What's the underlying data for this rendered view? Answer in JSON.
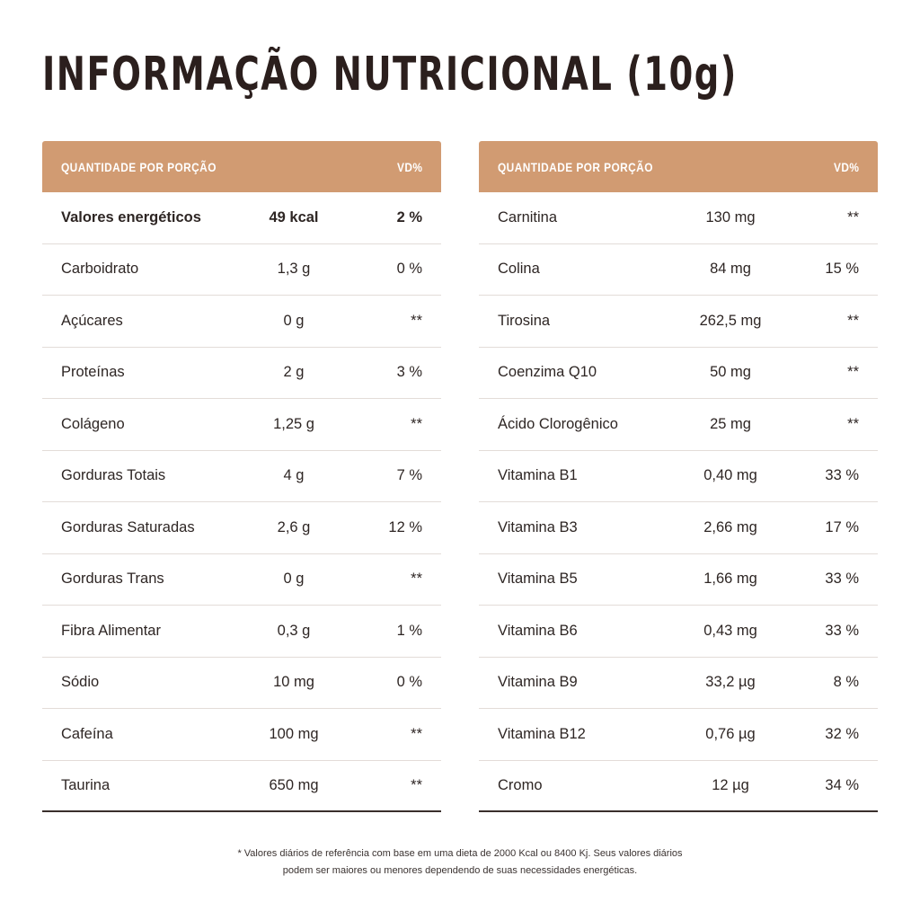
{
  "title": "INFORMAÇÃO NUTRICIONAL (10g)",
  "left_table": {
    "header": {
      "quantity": "QUANTIDADE POR PORÇÃO",
      "vd": "VD%"
    },
    "rows": [
      {
        "name": "Valores energéticos",
        "amount": "49 kcal",
        "vd": "2 %"
      },
      {
        "name": "Carboidrato",
        "amount": "1,3 g",
        "vd": "0 %"
      },
      {
        "name": "Açúcares",
        "amount": "0 g",
        "vd": "**"
      },
      {
        "name": "Proteínas",
        "amount": "2 g",
        "vd": "3 %"
      },
      {
        "name": "Colágeno",
        "amount": "1,25 g",
        "vd": "**"
      },
      {
        "name": "Gorduras Totais",
        "amount": "4 g",
        "vd": "7 %"
      },
      {
        "name": "Gorduras Saturadas",
        "amount": "2,6 g",
        "vd": "12 %"
      },
      {
        "name": "Gorduras Trans",
        "amount": "0 g",
        "vd": "**"
      },
      {
        "name": "Fibra Alimentar",
        "amount": "0,3 g",
        "vd": "1 %"
      },
      {
        "name": "Sódio",
        "amount": "10 mg",
        "vd": "0 %"
      },
      {
        "name": "Cafeína",
        "amount": "100 mg",
        "vd": "**"
      },
      {
        "name": "Taurina",
        "amount": "650 mg",
        "vd": "**"
      }
    ]
  },
  "right_table": {
    "header": {
      "quantity": "QUANTIDADE POR PORÇÃO",
      "vd": "VD%"
    },
    "rows": [
      {
        "name": "Carnitina",
        "amount": "130 mg",
        "vd": "**"
      },
      {
        "name": "Colina",
        "amount": "84 mg",
        "vd": "15 %"
      },
      {
        "name": "Tirosina",
        "amount": "262,5 mg",
        "vd": "**"
      },
      {
        "name": "Coenzima Q10",
        "amount": "50 mg",
        "vd": "**"
      },
      {
        "name": "Ácido Clorogênico",
        "amount": "25 mg",
        "vd": "**"
      },
      {
        "name": "Vitamina B1",
        "amount": "0,40 mg",
        "vd": "33 %"
      },
      {
        "name": "Vitamina B3",
        "amount": "2,66 mg",
        "vd": "17 %"
      },
      {
        "name": "Vitamina B5",
        "amount": "1,66 mg",
        "vd": "33 %"
      },
      {
        "name": "Vitamina B6",
        "amount": "0,43 mg",
        "vd": "33 %"
      },
      {
        "name": "Vitamina B9",
        "amount": "33,2 µg",
        "vd": "8 %"
      },
      {
        "name": "Vitamina B12",
        "amount": "0,76 µg",
        "vd": "32 %"
      },
      {
        "name": "Cromo",
        "amount": "12 µg",
        "vd": "34 %"
      }
    ]
  },
  "footnote": {
    "line1": "* Valores diários de referência com base em uma dieta de 2000 Kcal ou 8400 Kj. Seus valores diários",
    "line2": "podem ser maiores ou menores dependendo de suas necessidades energéticas."
  },
  "colors": {
    "header_bg": "#d19b72",
    "title": "#2b1f1d",
    "rule": "#3a2f2c"
  }
}
